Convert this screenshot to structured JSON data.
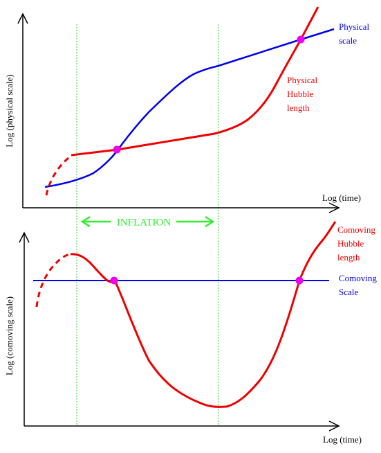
{
  "top_panel": {
    "y_label": "Log (physical scale)",
    "x_label": "Log (time)",
    "physical_scale": [
      "Physical",
      "scale"
    ],
    "hubble_length": [
      "Physical",
      "Hubble",
      "length"
    ]
  },
  "inflation": "INFLATION",
  "bottom_panel": {
    "y_label": "Log (comoving scale)",
    "x_label": "Log (time)",
    "hubble_length": [
      "Comoving",
      "Hubble",
      "length"
    ],
    "comoving_scale": [
      "Comoving",
      "Scale"
    ]
  }
}
